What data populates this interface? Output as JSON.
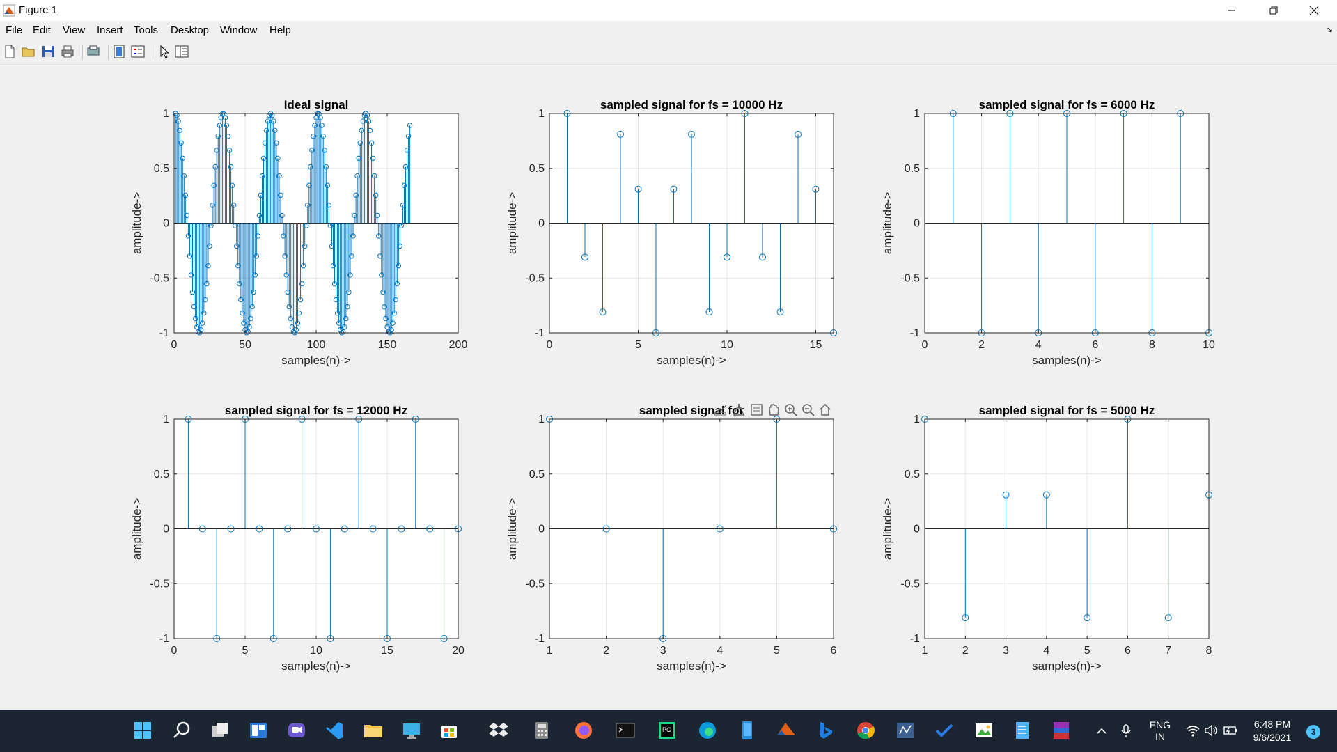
{
  "window": {
    "title": "Figure 1"
  },
  "menu": [
    "File",
    "Edit",
    "View",
    "Insert",
    "Tools",
    "Desktop",
    "Window",
    "Help"
  ],
  "colors": {
    "stem": "#0072bd",
    "grid": "#e6e6e6",
    "axes_bg": "#ffffff",
    "fig_bg": "#f0f0f0",
    "taskbar": "#1c2633"
  },
  "toolbar_icons": [
    "new-file-icon",
    "open-folder-icon",
    "save-icon",
    "print-icon",
    "print-preview-icon",
    "colorbar-icon",
    "legend-icon",
    "pointer-icon",
    "property-editor-icon"
  ],
  "axes_toolbar_icons": [
    "export-icon",
    "brush-icon",
    "datatip-icon",
    "pan-icon",
    "zoom-in-icon",
    "zoom-out-icon",
    "home-icon"
  ],
  "chart_data": [
    {
      "type": "stem",
      "title": "Ideal signal",
      "xlabel": "samples(n)->",
      "ylabel": "amplitude->",
      "xlim": [
        0,
        200
      ],
      "ylim": [
        -1,
        1
      ],
      "xticks": [
        0,
        50,
        100,
        150,
        200
      ],
      "yticks": [
        -1,
        -0.5,
        0,
        0.5,
        1
      ],
      "grid": true,
      "x_range": [
        1,
        166
      ],
      "y_formula": "cos(2*pi*(n-1)/33.5)"
    },
    {
      "type": "stem",
      "title": "sampled signal for fs = 10000 Hz",
      "xlabel": "samples(n)->",
      "ylabel": "amplitude->",
      "xlim": [
        0,
        16
      ],
      "ylim": [
        -1,
        1
      ],
      "xticks": [
        0,
        5,
        10,
        15
      ],
      "yticks": [
        -1,
        -0.5,
        0,
        0.5,
        1
      ],
      "grid": true,
      "x": [
        1,
        2,
        3,
        4,
        5,
        6,
        7,
        8,
        9,
        10,
        11,
        12,
        13,
        14,
        15,
        16
      ],
      "y": [
        1,
        -0.31,
        -0.81,
        0.81,
        0.31,
        -1,
        0.31,
        0.81,
        -0.81,
        -0.31,
        1,
        -0.31,
        -0.81,
        0.81,
        0.31,
        -1
      ]
    },
    {
      "type": "stem",
      "title": "sampled signal for fs = 6000 Hz",
      "xlabel": "samples(n)->",
      "ylabel": "amplitude->",
      "xlim": [
        0,
        10
      ],
      "ylim": [
        -1,
        1
      ],
      "xticks": [
        0,
        2,
        4,
        6,
        8,
        10
      ],
      "yticks": [
        -1,
        -0.5,
        0,
        0.5,
        1
      ],
      "grid": true,
      "x": [
        1,
        2,
        3,
        4,
        5,
        6,
        7,
        8,
        9,
        10
      ],
      "y": [
        1,
        -1,
        1,
        -1,
        1,
        -1,
        1,
        -1,
        1,
        -1
      ]
    },
    {
      "type": "stem",
      "title": "sampled signal for fs = 12000 Hz",
      "xlabel": "samples(n)->",
      "ylabel": "amplitude->",
      "xlim": [
        0,
        20
      ],
      "ylim": [
        -1,
        1
      ],
      "xticks": [
        0,
        5,
        10,
        15,
        20
      ],
      "yticks": [
        -1,
        -0.5,
        0,
        0.5,
        1
      ],
      "grid": true,
      "x": [
        1,
        2,
        3,
        4,
        5,
        6,
        7,
        8,
        9,
        10,
        11,
        12,
        13,
        14,
        15,
        16,
        17,
        18,
        19,
        20
      ],
      "y": [
        1,
        0,
        -1,
        0,
        1,
        0,
        -1,
        0,
        1,
        0,
        -1,
        0,
        1,
        0,
        -1,
        0,
        1,
        0,
        -1,
        0
      ]
    },
    {
      "type": "stem",
      "title": "sampled signal for",
      "xlabel": "samples(n)->",
      "ylabel": "amplitude->",
      "xlim": [
        1,
        6
      ],
      "ylim": [
        -1,
        1
      ],
      "xticks": [
        1,
        2,
        3,
        4,
        5,
        6
      ],
      "yticks": [
        -1,
        -0.5,
        0,
        0.5,
        1
      ],
      "grid": true,
      "x": [
        1,
        2,
        3,
        4,
        5,
        6
      ],
      "y": [
        1,
        0,
        -1,
        0,
        1,
        0
      ]
    },
    {
      "type": "stem",
      "title": "sampled signal for fs = 5000 Hz",
      "xlabel": "samples(n)->",
      "ylabel": "amplitude->",
      "xlim": [
        1,
        8
      ],
      "ylim": [
        -1,
        1
      ],
      "xticks": [
        1,
        2,
        3,
        4,
        5,
        6,
        7,
        8
      ],
      "yticks": [
        -1,
        -0.5,
        0,
        0.5,
        1
      ],
      "grid": true,
      "x": [
        1,
        2,
        3,
        4,
        5,
        6,
        7,
        8
      ],
      "y": [
        1,
        -0.81,
        0.31,
        0.31,
        -0.81,
        1,
        -0.81,
        0.31
      ]
    }
  ],
  "taskbar": {
    "icons": [
      "start-icon",
      "search-icon",
      "task-view-icon",
      "widgets-icon",
      "chat-icon",
      "vscode-icon",
      "file-explorer-icon",
      "desktop-icon",
      "store-icon",
      "dropbox-icon",
      "calculator-icon",
      "firefox-icon",
      "terminal-icon",
      "pycharm-icon",
      "edge-icon",
      "phone-icon",
      "matlab-icon",
      "bing-icon",
      "chrome-icon",
      "network-app-icon",
      "todo-icon",
      "photo-icon",
      "notepad-icon",
      "winrar-icon"
    ],
    "lang_top": "ENG",
    "lang_bottom": "IN",
    "time": "6:48 PM",
    "date": "9/6/2021",
    "notification_count": "3"
  }
}
